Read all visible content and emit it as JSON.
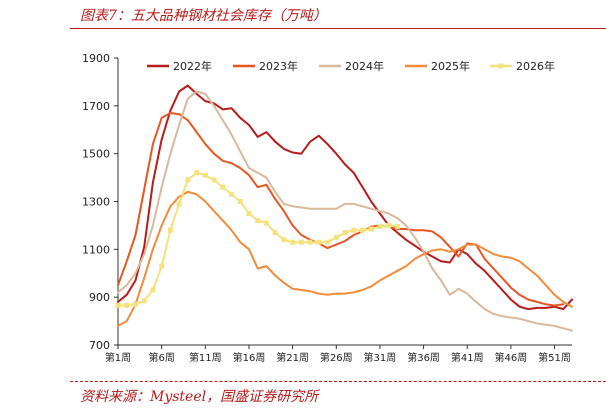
{
  "figure": {
    "title": "图表7：五大品种钢材社会库存（万吨）",
    "source": "资料来源：Mysteel，国盛证券研究所"
  },
  "chart_data": {
    "type": "line",
    "xlabel": "",
    "ylabel": "",
    "ylim": [
      700,
      1900
    ],
    "yticks": [
      700,
      900,
      1100,
      1300,
      1500,
      1700,
      1900
    ],
    "xlim": [
      1,
      53
    ],
    "xticks": [
      1,
      6,
      11,
      16,
      21,
      26,
      31,
      36,
      41,
      46,
      51
    ],
    "xtick_labels": [
      "第1周",
      "第6周",
      "第11周",
      "第16周",
      "第21周",
      "第26周",
      "第31周",
      "第36周",
      "第41周",
      "第46周",
      "第51周"
    ],
    "grid": false,
    "legend": "top",
    "series": [
      {
        "name": "2022年",
        "color": "#b71c1c",
        "x": [
          1,
          2,
          3,
          4,
          5,
          6,
          7,
          8,
          9,
          10,
          11,
          12,
          13,
          14,
          15,
          16,
          17,
          18,
          19,
          20,
          21,
          22,
          23,
          24,
          25,
          26,
          27,
          28,
          29,
          30,
          31,
          32,
          33,
          34,
          35,
          36,
          37,
          38,
          39,
          40,
          41,
          42,
          43,
          44,
          45,
          46,
          47,
          48,
          49,
          50,
          51,
          52,
          53
        ],
        "values": [
          880,
          910,
          970,
          1110,
          1380,
          1560,
          1680,
          1760,
          1785,
          1750,
          1720,
          1710,
          1685,
          1690,
          1650,
          1620,
          1570,
          1590,
          1550,
          1520,
          1505,
          1500,
          1550,
          1575,
          1540,
          1500,
          1455,
          1420,
          1360,
          1300,
          1250,
          1200,
          1170,
          1140,
          1115,
          1090,
          1070,
          1050,
          1045,
          1100,
          1080,
          1040,
          1010,
          970,
          930,
          890,
          860,
          850,
          855,
          855,
          860,
          850,
          890
        ]
      },
      {
        "name": "2023年",
        "color": "#e65722",
        "x": [
          1,
          2,
          3,
          4,
          5,
          6,
          7,
          8,
          9,
          10,
          11,
          12,
          13,
          14,
          15,
          16,
          17,
          18,
          19,
          20,
          21,
          22,
          23,
          24,
          25,
          26,
          27,
          28,
          29,
          30,
          31,
          32,
          33,
          34,
          35,
          36,
          37,
          38,
          39,
          40,
          41,
          42,
          43,
          44,
          45,
          46,
          47,
          48,
          49,
          50,
          51,
          52
        ],
        "values": [
          950,
          1050,
          1160,
          1350,
          1540,
          1650,
          1670,
          1665,
          1640,
          1590,
          1540,
          1500,
          1470,
          1460,
          1440,
          1410,
          1360,
          1370,
          1310,
          1260,
          1200,
          1160,
          1140,
          1125,
          1105,
          1120,
          1135,
          1160,
          1175,
          1195,
          1200,
          1195,
          1185,
          1185,
          1180,
          1180,
          1175,
          1150,
          1110,
          1070,
          1125,
          1120,
          1060,
          1020,
          980,
          940,
          910,
          890,
          880,
          870,
          865,
          870
        ]
      },
      {
        "name": "2024年",
        "color": "#d9b99b",
        "x": [
          1,
          2,
          3,
          4,
          5,
          6,
          7,
          8,
          9,
          10,
          11,
          12,
          13,
          14,
          15,
          16,
          17,
          18,
          19,
          20,
          21,
          22,
          23,
          24,
          25,
          26,
          27,
          28,
          29,
          30,
          31,
          32,
          33,
          34,
          35,
          36,
          37,
          38,
          39,
          40,
          41,
          42,
          43,
          44,
          45,
          46,
          47,
          48,
          49,
          50,
          51,
          52,
          53
        ],
        "values": [
          920,
          950,
          1000,
          1080,
          1200,
          1360,
          1500,
          1620,
          1730,
          1760,
          1750,
          1700,
          1640,
          1580,
          1510,
          1440,
          1420,
          1400,
          1340,
          1290,
          1280,
          1275,
          1270,
          1270,
          1270,
          1270,
          1290,
          1290,
          1280,
          1270,
          1260,
          1250,
          1230,
          1200,
          1150,
          1090,
          1020,
          970,
          910,
          935,
          915,
          880,
          850,
          830,
          820,
          815,
          810,
          800,
          790,
          785,
          780,
          770,
          760
        ]
      },
      {
        "name": "2025年",
        "color": "#f08c3c",
        "x": [
          1,
          2,
          3,
          4,
          5,
          6,
          7,
          8,
          9,
          10,
          11,
          12,
          13,
          14,
          15,
          16,
          17,
          18,
          19,
          20,
          21,
          22,
          23,
          24,
          25,
          26,
          27,
          28,
          29,
          30,
          31,
          32,
          33,
          34,
          35,
          36,
          37,
          38,
          39,
          40,
          41,
          42,
          43,
          44,
          45,
          46,
          47,
          48,
          49,
          50,
          51,
          52,
          53
        ],
        "values": [
          780,
          800,
          870,
          980,
          1100,
          1200,
          1280,
          1320,
          1340,
          1330,
          1300,
          1260,
          1220,
          1180,
          1130,
          1100,
          1020,
          1030,
          990,
          960,
          935,
          930,
          925,
          915,
          910,
          915,
          915,
          920,
          930,
          945,
          970,
          990,
          1010,
          1030,
          1060,
          1080,
          1095,
          1100,
          1090,
          1100,
          1120,
          1120,
          1100,
          1080,
          1070,
          1065,
          1050,
          1020,
          990,
          950,
          910,
          880,
          860
        ]
      },
      {
        "name": "2026年",
        "color": "#f5e27d",
        "x": [
          1,
          2,
          3,
          4,
          5,
          6,
          7,
          8,
          9,
          10,
          11,
          12,
          13,
          14,
          15,
          16,
          17,
          18,
          19,
          20,
          21,
          22,
          23,
          24,
          25,
          26,
          27,
          28,
          29,
          30,
          31,
          32,
          33
        ],
        "values": [
          865,
          865,
          870,
          885,
          930,
          1030,
          1180,
          1290,
          1390,
          1420,
          1410,
          1390,
          1360,
          1330,
          1300,
          1250,
          1220,
          1210,
          1170,
          1140,
          1130,
          1130,
          1130,
          1130,
          1130,
          1150,
          1170,
          1180,
          1180,
          1185,
          1195,
          1200,
          1195
        ]
      }
    ]
  }
}
